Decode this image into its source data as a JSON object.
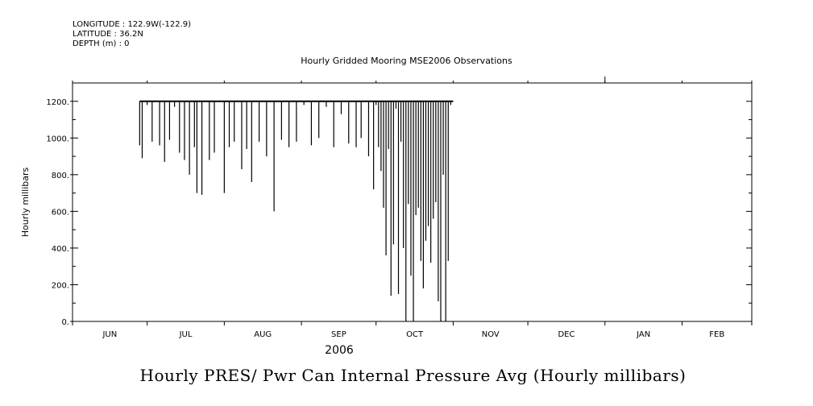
{
  "header": {
    "longitude": "LONGITUDE : 122.9W(-122.9)",
    "latitude": "LATITUDE : 36.2N",
    "depth": "DEPTH (m) : 0"
  },
  "chart_data": {
    "type": "line",
    "title": "Hourly Gridded Mooring MSE2006 Observations",
    "bottom_title": "Hourly PRES/ Pwr Can Internal Pressure Avg (Hourly millibars)",
    "ylabel": "Hourly millibars",
    "xlabel": "2006",
    "ylim": [
      0,
      1300
    ],
    "yticks": [
      "0.",
      "200.",
      "400.",
      "600.",
      "800.",
      "1000.",
      "1200."
    ],
    "ytick_values": [
      0,
      200,
      400,
      600,
      800,
      1000,
      1200
    ],
    "x_months": [
      "JUN",
      "JUL",
      "AUG",
      "SEP",
      "OCT",
      "NOV",
      "DEC",
      "JAN",
      "FEB"
    ],
    "xlim": [
      "2006-06-01",
      "2007-03-01"
    ],
    "grid": false,
    "series": [
      {
        "baseline": 1200,
        "x": [
          "2006-06-28",
          "2006-06-29",
          "2006-07-01",
          "2006-07-03",
          "2006-07-04",
          "2006-07-06",
          "2006-07-08",
          "2006-07-10",
          "2006-07-12",
          "2006-07-14",
          "2006-07-16",
          "2006-07-18",
          "2006-07-20",
          "2006-07-21",
          "2006-07-23",
          "2006-07-26",
          "2006-07-28",
          "2006-08-01",
          "2006-08-03",
          "2006-08-05",
          "2006-08-08",
          "2006-08-10",
          "2006-08-12",
          "2006-08-15",
          "2006-08-18",
          "2006-08-21",
          "2006-08-24",
          "2006-08-27",
          "2006-08-30",
          "2006-09-02",
          "2006-09-05",
          "2006-09-08",
          "2006-09-11",
          "2006-09-14",
          "2006-09-17",
          "2006-09-20",
          "2006-09-23",
          "2006-09-25",
          "2006-09-28",
          "2006-09-30",
          "2006-10-01",
          "2006-10-02",
          "2006-10-03",
          "2006-10-04",
          "2006-10-05",
          "2006-10-06",
          "2006-10-07",
          "2006-10-08",
          "2006-10-09",
          "2006-10-10",
          "2006-10-11",
          "2006-10-12",
          "2006-10-13",
          "2006-10-14",
          "2006-10-15",
          "2006-10-16",
          "2006-10-17",
          "2006-10-18",
          "2006-10-19",
          "2006-10-20",
          "2006-10-21",
          "2006-10-22",
          "2006-10-23",
          "2006-10-24",
          "2006-10-25",
          "2006-10-26",
          "2006-10-27",
          "2006-10-28",
          "2006-10-29",
          "2006-10-30",
          "2006-10-31",
          "2006-11-01"
        ],
        "y": [
          960,
          890,
          1180,
          980,
          1200,
          960,
          870,
          990,
          1170,
          920,
          880,
          800,
          950,
          700,
          690,
          880,
          920,
          700,
          950,
          980,
          830,
          940,
          760,
          980,
          900,
          600,
          990,
          950,
          980,
          1180,
          960,
          1000,
          1170,
          950,
          1130,
          970,
          950,
          1000,
          900,
          720,
          1180,
          950,
          820,
          620,
          360,
          940,
          140,
          420,
          1160,
          150,
          980,
          400,
          0,
          640,
          250,
          0,
          580,
          620,
          330,
          180,
          440,
          520,
          320,
          560,
          650,
          110,
          0,
          800,
          0,
          330,
          1180,
          1200
        ]
      }
    ]
  }
}
